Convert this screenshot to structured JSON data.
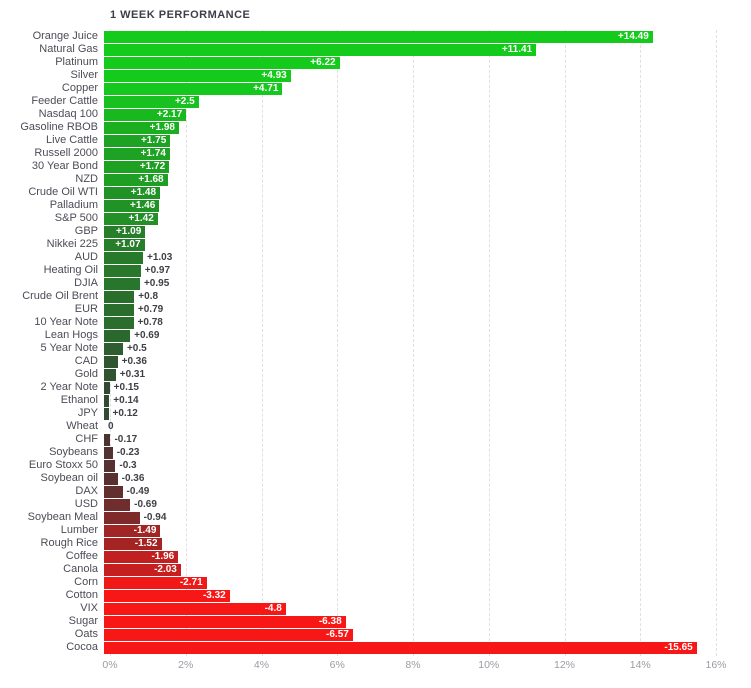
{
  "chart_data": {
    "type": "bar",
    "orientation": "horizontal",
    "title": "1 WEEK PERFORMANCE",
    "xlabel": "",
    "ylabel": "",
    "unit": "%",
    "note": "bar length equals absolute value of 1-week percent change; green = positive, red = negative, brightness scales with magnitude",
    "x_axis": {
      "min": 0,
      "max": 16,
      "tick_labels": [
        "0%",
        "2%",
        "4%",
        "6%",
        "8%",
        "10%",
        "12%",
        "14%",
        "16%"
      ],
      "grid": "dashed"
    },
    "rows": [
      {
        "label": "Orange Juice",
        "value": 14.49,
        "display": "+14.49",
        "color": "#14cb1c",
        "label_inside": true
      },
      {
        "label": "Natural Gas",
        "value": 11.41,
        "display": "+11.41",
        "color": "#14cb1c",
        "label_inside": true
      },
      {
        "label": "Platinum",
        "value": 6.22,
        "display": "+6.22",
        "color": "#14cb1c",
        "label_inside": true
      },
      {
        "label": "Silver",
        "value": 4.93,
        "display": "+4.93",
        "color": "#14cb1c",
        "label_inside": true
      },
      {
        "label": "Copper",
        "value": 4.71,
        "display": "+4.71",
        "color": "#15c81d",
        "label_inside": true
      },
      {
        "label": "Feeder Cattle",
        "value": 2.5,
        "display": "+2.5",
        "color": "#18c120",
        "label_inside": true
      },
      {
        "label": "Nasdaq 100",
        "value": 2.17,
        "display": "+2.17",
        "color": "#18b91f",
        "label_inside": true
      },
      {
        "label": "Gasoline RBOB",
        "value": 1.98,
        "display": "+1.98",
        "color": "#1bae21",
        "label_inside": true
      },
      {
        "label": "Live Cattle",
        "value": 1.75,
        "display": "+1.75",
        "color": "#1ea223",
        "label_inside": true
      },
      {
        "label": "Russell 2000",
        "value": 1.74,
        "display": "+1.74",
        "color": "#1ea223",
        "label_inside": true
      },
      {
        "label": "30 Year Bond",
        "value": 1.72,
        "display": "+1.72",
        "color": "#1ea023",
        "label_inside": true
      },
      {
        "label": "NZD",
        "value": 1.68,
        "display": "+1.68",
        "color": "#1f9e24",
        "label_inside": true
      },
      {
        "label": "Crude Oil WTI",
        "value": 1.48,
        "display": "+1.48",
        "color": "#219326",
        "label_inside": true
      },
      {
        "label": "Palladium",
        "value": 1.46,
        "display": "+1.46",
        "color": "#219226",
        "label_inside": true
      },
      {
        "label": "S&P 500",
        "value": 1.42,
        "display": "+1.42",
        "color": "#229026",
        "label_inside": true
      },
      {
        "label": "GBP",
        "value": 1.09,
        "display": "+1.09",
        "color": "#267e2a",
        "label_inside": true
      },
      {
        "label": "Nikkei 225",
        "value": 1.07,
        "display": "+1.07",
        "color": "#267d2a",
        "label_inside": true
      },
      {
        "label": "AUD",
        "value": 1.03,
        "display": "+1.03",
        "color": "#277a2a",
        "label_inside": false
      },
      {
        "label": "Heating Oil",
        "value": 0.97,
        "display": "+0.97",
        "color": "#28772b",
        "label_inside": false
      },
      {
        "label": "DJIA",
        "value": 0.95,
        "display": "+0.95",
        "color": "#28762b",
        "label_inside": false
      },
      {
        "label": "Crude Oil Brent",
        "value": 0.8,
        "display": "+0.8",
        "color": "#2a6e2c",
        "label_inside": false
      },
      {
        "label": "EUR",
        "value": 0.79,
        "display": "+0.79",
        "color": "#2a6d2c",
        "label_inside": false
      },
      {
        "label": "10 Year Note",
        "value": 0.78,
        "display": "+0.78",
        "color": "#2a6d2c",
        "label_inside": false
      },
      {
        "label": "Lean Hogs",
        "value": 0.69,
        "display": "+0.69",
        "color": "#2b682d",
        "label_inside": false
      },
      {
        "label": "5 Year Note",
        "value": 0.5,
        "display": "+0.5",
        "color": "#2e5d2f",
        "label_inside": false
      },
      {
        "label": "CAD",
        "value": 0.36,
        "display": "+0.36",
        "color": "#2f5631",
        "label_inside": false
      },
      {
        "label": "Gold",
        "value": 0.31,
        "display": "+0.31",
        "color": "#305331",
        "label_inside": false
      },
      {
        "label": "2 Year Note",
        "value": 0.15,
        "display": "+0.15",
        "color": "#324a33",
        "label_inside": false
      },
      {
        "label": "Ethanol",
        "value": 0.14,
        "display": "+0.14",
        "color": "#324a33",
        "label_inside": false
      },
      {
        "label": "JPY",
        "value": 0.12,
        "display": "+0.12",
        "color": "#324933",
        "label_inside": false
      },
      {
        "label": "Wheat",
        "value": 0,
        "display": "0",
        "color": "#3a3f3a",
        "label_inside": false
      },
      {
        "label": "CHF",
        "value": -0.17,
        "display": "-0.17",
        "color": "#4d3232",
        "label_inside": false
      },
      {
        "label": "Soybeans",
        "value": -0.23,
        "display": "-0.23",
        "color": "#513232",
        "label_inside": false
      },
      {
        "label": "Euro Stoxx 50",
        "value": -0.3,
        "display": "-0.3",
        "color": "#553131",
        "label_inside": false
      },
      {
        "label": "Soybean oil",
        "value": -0.36,
        "display": "-0.36",
        "color": "#593030",
        "label_inside": false
      },
      {
        "label": "DAX",
        "value": -0.49,
        "display": "-0.49",
        "color": "#622f2f",
        "label_inside": false
      },
      {
        "label": "USD",
        "value": -0.69,
        "display": "-0.69",
        "color": "#6f2d2d",
        "label_inside": false
      },
      {
        "label": "Soybean Meal",
        "value": -0.94,
        "display": "-0.94",
        "color": "#7f2a2a",
        "label_inside": false
      },
      {
        "label": "Lumber",
        "value": -1.49,
        "display": "-1.49",
        "color": "#a22525",
        "label_inside": true
      },
      {
        "label": "Rough Rice",
        "value": -1.52,
        "display": "-1.52",
        "color": "#a42424",
        "label_inside": true
      },
      {
        "label": "Coffee",
        "value": -1.96,
        "display": "-1.96",
        "color": "#c12020",
        "label_inside": true
      },
      {
        "label": "Canola",
        "value": -2.03,
        "display": "-2.03",
        "color": "#c51f1f",
        "label_inside": true
      },
      {
        "label": "Corn",
        "value": -2.71,
        "display": "-2.71",
        "color": "#f11818",
        "label_inside": true
      },
      {
        "label": "Cotton",
        "value": -3.32,
        "display": "-3.32",
        "color": "#f71717",
        "label_inside": true
      },
      {
        "label": "VIX",
        "value": -4.8,
        "display": "-4.8",
        "color": "#f71717",
        "label_inside": true
      },
      {
        "label": "Sugar",
        "value": -6.38,
        "display": "-6.38",
        "color": "#f71717",
        "label_inside": true
      },
      {
        "label": "Oats",
        "value": -6.57,
        "display": "-6.57",
        "color": "#f71717",
        "label_inside": true
      },
      {
        "label": "Cocoa",
        "value": -15.65,
        "display": "-15.65",
        "color": "#f71717",
        "label_inside": true
      }
    ]
  },
  "colors": {
    "background": "#ffffff",
    "grid": "#dfdfe4",
    "title_text": "#3e3e4a",
    "row_label_text": "#4c4c57",
    "axis_tick_text": "#9b9ba3",
    "inside_value_text": "#ffffff",
    "outside_value_text": "#3f3f46",
    "positive_bright": "#14cb1c",
    "negative_bright": "#f71717"
  }
}
